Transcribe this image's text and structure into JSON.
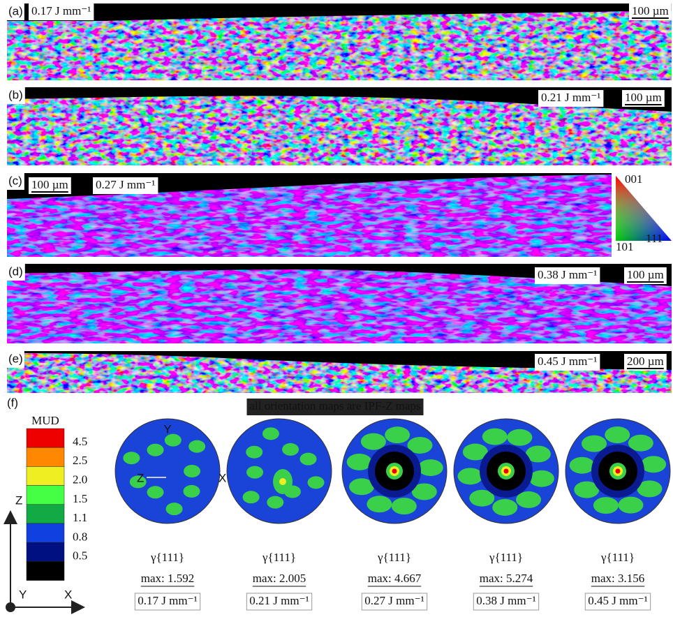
{
  "panels": [
    {
      "label": "(a)",
      "energy": "0.17 J mm⁻¹",
      "scale_bar": "100 µm"
    },
    {
      "label": "(b)",
      "energy": "0.21 J mm⁻¹",
      "scale_bar": "100 µm"
    },
    {
      "label": "(c)",
      "energy": "0.27 J mm⁻¹",
      "scale_bar": "100 µm"
    },
    {
      "label": "(d)",
      "energy": "0.38 J mm⁻¹",
      "scale_bar": "100 µm"
    },
    {
      "label": "(e)",
      "energy": "0.45 J mm⁻¹",
      "scale_bar": "200 µm"
    }
  ],
  "ipf_legend": {
    "top": "001",
    "left": "101",
    "right": "111"
  },
  "note": "all orientation maps are IPF-Z maps",
  "pole_figures": {
    "label": "(f)",
    "legend_title": "MUD",
    "legend_levels": [
      "4.5",
      "2.5",
      "2.0",
      "1.5",
      "1.1",
      "0.8",
      "0.5"
    ],
    "axes": {
      "y": "Y",
      "z": "Z",
      "x": "X"
    },
    "figures": [
      {
        "plane": "γ{111}",
        "max": "max: 1.592",
        "energy": "0.17 J mm⁻¹"
      },
      {
        "plane": "γ{111}",
        "max": "max: 2.005",
        "energy": "0.21 J mm⁻¹"
      },
      {
        "plane": "γ{111}",
        "max": "max: 4.667",
        "energy": "0.27 J mm⁻¹"
      },
      {
        "plane": "γ{111}",
        "max": "max: 5.274",
        "energy": "0.38 J mm⁻¹"
      },
      {
        "plane": "γ{111}",
        "max": "max: 3.156",
        "energy": "0.45 J mm⁻¹"
      }
    ]
  },
  "frame": {
    "z": "Z",
    "y": "Y",
    "x": "X"
  }
}
